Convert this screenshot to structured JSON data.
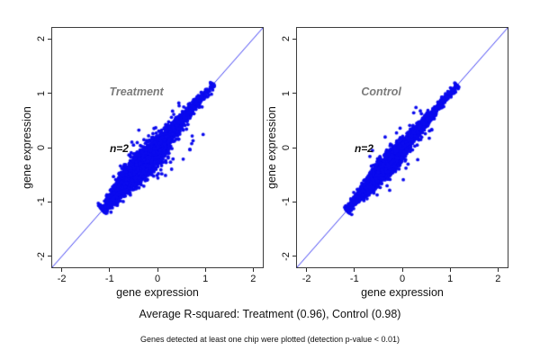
{
  "figure": {
    "caption_primary": "Average R-squared: Treatment (0.96), Control (0.98)",
    "caption_secondary": "Genes detected at least one chip were plotted (detection p-value < 0.01)"
  },
  "colors": {
    "point_blue": "#0a0aee",
    "identity_line_blue": "#3a3af2",
    "panel_title_gray": "#7b7b7b",
    "axis_black": "#111111"
  },
  "chart_data": [
    {
      "type": "scatter",
      "title": "Treatment",
      "xlabel": "gene expression",
      "ylabel": "gene expression",
      "xlim": [
        -2.2,
        2.2
      ],
      "ylim": [
        -2.2,
        2.2
      ],
      "x_ticks": [
        -2,
        -1,
        0,
        1,
        2
      ],
      "y_ticks": [
        -2,
        -1,
        0,
        1,
        2
      ],
      "annotation": "n=2",
      "annotation_xy": [
        -0.8,
        -0.02
      ],
      "title_xy": [
        -0.44,
        1.02
      ],
      "r_squared": 0.96,
      "identity_line": true,
      "grid": false,
      "point_color": "#0a0aee",
      "line_color": "#3a3af2",
      "points_summary": "Dense replicate-vs-replicate cloud along y=x from about (-1.15,-1.15) to (1.17,1.17), widest near the middle, tapering to a tip at top; sparse outliers mostly below the line",
      "scatter_model": {
        "seed": 7,
        "n": 3000,
        "mix_w": 0.78,
        "t1_mean": -0.38,
        "t1_sd": 0.4,
        "t2_mean": 0.5,
        "t2_sd": 0.34,
        "t_min": -1.15,
        "t_max": 1.17,
        "spread": 0.115,
        "out_count": 34,
        "out_t0": -0.35,
        "out_trange": 1.0,
        "out_mag": 0.4,
        "out_below_frac": 0.74
      }
    },
    {
      "type": "scatter",
      "title": "Control",
      "xlabel": "gene expression",
      "ylabel": "gene expression",
      "xlim": [
        -2.2,
        2.2
      ],
      "ylim": [
        -2.2,
        2.2
      ],
      "x_ticks": [
        -2,
        -1,
        0,
        1,
        2
      ],
      "y_ticks": [
        -2,
        -1,
        0,
        1,
        2
      ],
      "annotation": "n=2",
      "annotation_xy": [
        -0.8,
        -0.02
      ],
      "title_xy": [
        -0.44,
        1.02
      ],
      "r_squared": 0.98,
      "identity_line": true,
      "grid": false,
      "point_color": "#0a0aee",
      "line_color": "#3a3af2",
      "points_summary": "Tighter replicate cloud along y=x from about (-1.16,-1.16) to (1.15,1.15) with a chunky lower end; a few outliers on both sides of the line",
      "scatter_model": {
        "seed": 13,
        "n": 3000,
        "mix_w": 0.76,
        "t1_mean": -0.42,
        "t1_sd": 0.38,
        "t2_mean": 0.52,
        "t2_sd": 0.33,
        "t_min": -1.16,
        "t_max": 1.15,
        "spread": 0.082,
        "out_count": 24,
        "out_t0": -0.55,
        "out_trange": 1.15,
        "out_mag": 0.32,
        "out_below_frac": 0.55
      }
    }
  ]
}
